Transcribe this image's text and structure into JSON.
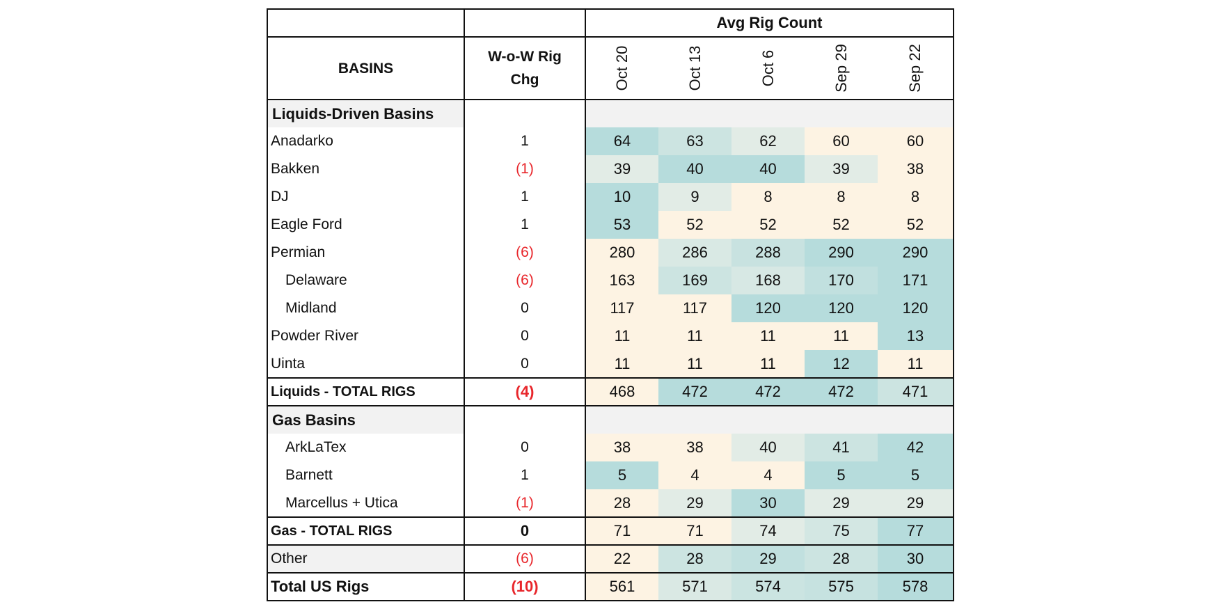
{
  "header": {
    "super_label": "Avg Rig Count",
    "basins_label": "BASINS",
    "change_label_line1": "W-o-W Rig",
    "change_label_line2": "Chg",
    "dates": [
      "Oct 20",
      "Oct 13",
      "Oct 6",
      "Sep 29",
      "Sep 22"
    ]
  },
  "heat_colors": {
    "low": "#fdf3e3",
    "mid": "#e2ece6",
    "high": "#b6dcdc"
  },
  "liquids_section": {
    "label": "Liquids-Driven Basins",
    "rows": [
      {
        "name": "Anadarko",
        "indent": false,
        "chg": "1",
        "neg": false,
        "values": [
          64,
          63,
          62,
          60,
          60
        ]
      },
      {
        "name": "Bakken",
        "indent": false,
        "chg": "(1)",
        "neg": true,
        "values": [
          39,
          40,
          40,
          39,
          38
        ]
      },
      {
        "name": "DJ",
        "indent": false,
        "chg": "1",
        "neg": false,
        "values": [
          10,
          9,
          8,
          8,
          8
        ]
      },
      {
        "name": "Eagle Ford",
        "indent": false,
        "chg": "1",
        "neg": false,
        "values": [
          53,
          52,
          52,
          52,
          52
        ]
      },
      {
        "name": "Permian",
        "indent": false,
        "chg": "(6)",
        "neg": true,
        "values": [
          280,
          286,
          288,
          290,
          290
        ]
      },
      {
        "name": "Delaware",
        "indent": true,
        "chg": "(6)",
        "neg": true,
        "values": [
          163,
          169,
          168,
          170,
          171
        ]
      },
      {
        "name": "Midland",
        "indent": true,
        "chg": "0",
        "neg": false,
        "values": [
          117,
          117,
          120,
          120,
          120
        ]
      },
      {
        "name": "Powder River",
        "indent": false,
        "chg": "0",
        "neg": false,
        "values": [
          11,
          11,
          11,
          11,
          13
        ]
      },
      {
        "name": "Uinta",
        "indent": false,
        "chg": "0",
        "neg": false,
        "values": [
          11,
          11,
          11,
          12,
          11
        ]
      }
    ],
    "total": {
      "name": "Liquids - TOTAL RIGS",
      "chg": "(4)",
      "neg": true,
      "values": [
        468,
        472,
        472,
        472,
        471
      ]
    }
  },
  "gas_section": {
    "label": "Gas Basins",
    "rows": [
      {
        "name": "ArkLaTex",
        "indent": true,
        "chg": "0",
        "neg": false,
        "values": [
          38,
          38,
          40,
          41,
          42
        ]
      },
      {
        "name": "Barnett",
        "indent": true,
        "chg": "1",
        "neg": false,
        "values": [
          5,
          4,
          4,
          5,
          5
        ]
      },
      {
        "name": "Marcellus + Utica",
        "indent": true,
        "chg": "(1)",
        "neg": true,
        "values": [
          28,
          29,
          30,
          29,
          29
        ]
      }
    ],
    "total": {
      "name": "Gas - TOTAL RIGS",
      "chg": "0",
      "neg": false,
      "values": [
        71,
        71,
        74,
        75,
        77
      ]
    }
  },
  "other": {
    "name": "Other",
    "chg": "(6)",
    "neg": true,
    "values": [
      22,
      28,
      29,
      28,
      30
    ]
  },
  "grand_total": {
    "name": "Total US Rigs",
    "chg": "(10)",
    "neg": true,
    "values": [
      561,
      571,
      574,
      575,
      578
    ]
  }
}
